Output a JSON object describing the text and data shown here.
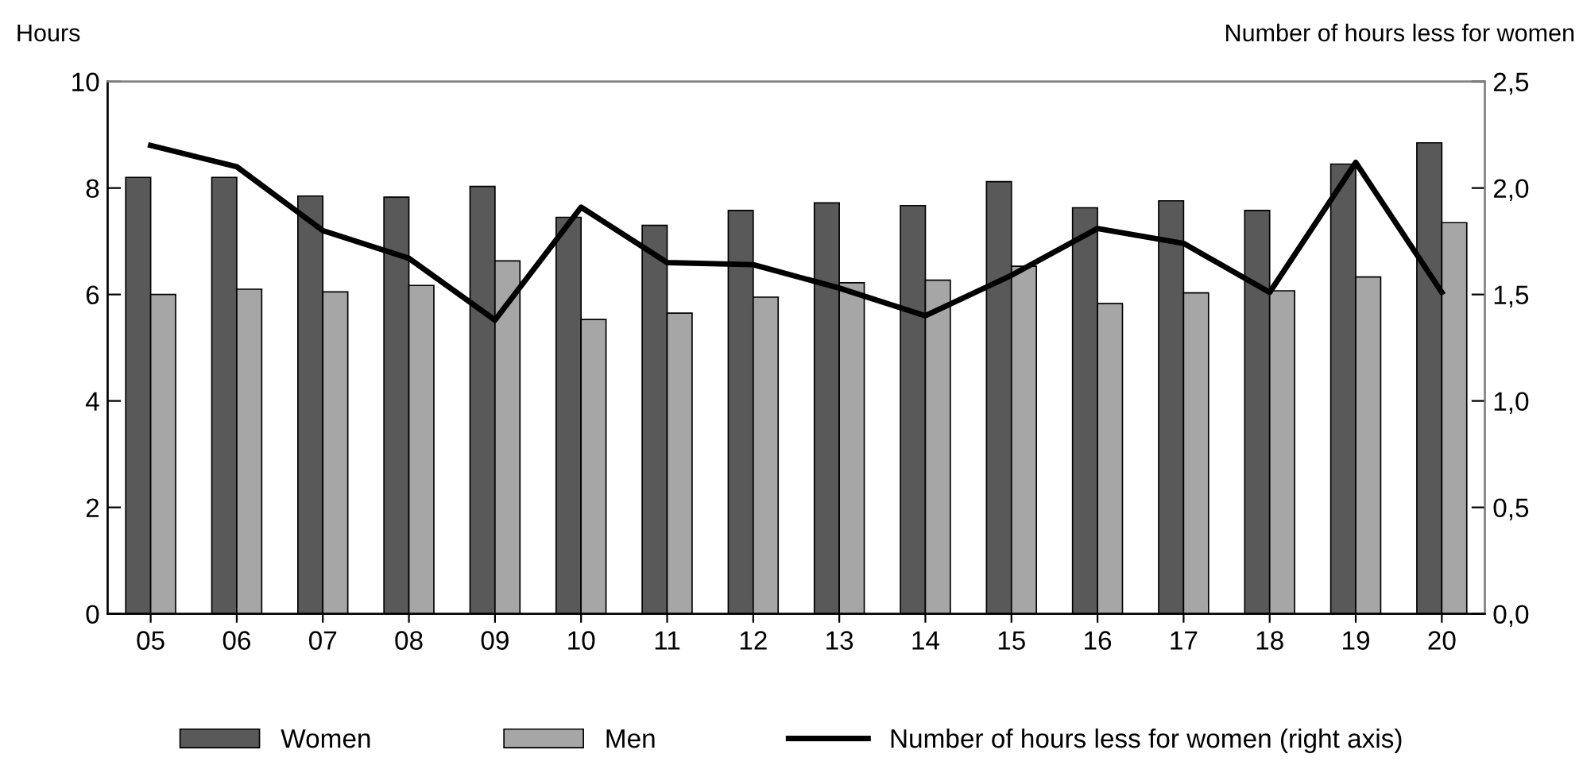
{
  "chart_data": {
    "type": "bar",
    "ylabel": "Hours",
    "y2label": "Number of hours less for women",
    "categories": [
      "05",
      "06",
      "07",
      "08",
      "09",
      "10",
      "11",
      "12",
      "13",
      "14",
      "15",
      "16",
      "17",
      "18",
      "19",
      "20"
    ],
    "series": [
      {
        "name": "Women",
        "color": "#595959",
        "values": [
          8.2,
          8.2,
          7.85,
          7.83,
          8.03,
          7.45,
          7.3,
          7.58,
          7.72,
          7.67,
          8.12,
          7.63,
          7.76,
          7.58,
          8.45,
          8.85
        ]
      },
      {
        "name": "Men",
        "color": "#a6a6a6",
        "values": [
          6.0,
          6.1,
          6.05,
          6.17,
          6.63,
          5.53,
          5.65,
          5.95,
          6.22,
          6.27,
          6.53,
          5.83,
          6.03,
          6.07,
          6.33,
          7.35
        ]
      },
      {
        "name": "Number of hours less for women (right axis)",
        "type": "line",
        "axis": "y2",
        "color": "#000000",
        "values": [
          2.2,
          2.1,
          1.8,
          1.67,
          1.38,
          1.91,
          1.65,
          1.64,
          1.53,
          1.4,
          1.59,
          1.81,
          1.74,
          1.51,
          2.12,
          1.51
        ]
      }
    ],
    "ylim": [
      0,
      10
    ],
    "yticks": [
      0,
      2,
      4,
      6,
      8,
      10
    ],
    "y2lim": [
      0,
      2.5
    ],
    "y2ticks": [
      {
        "value": 0,
        "label": "0,0"
      },
      {
        "value": 0.5,
        "label": "0,5"
      },
      {
        "value": 1,
        "label": "1,0"
      },
      {
        "value": 1.5,
        "label": "1,5"
      },
      {
        "value": 2,
        "label": "2,0"
      },
      {
        "value": 2.5,
        "label": "2,5"
      }
    ],
    "grid": false,
    "legend": "bottom",
    "line_style": "solid",
    "marker": "none"
  }
}
